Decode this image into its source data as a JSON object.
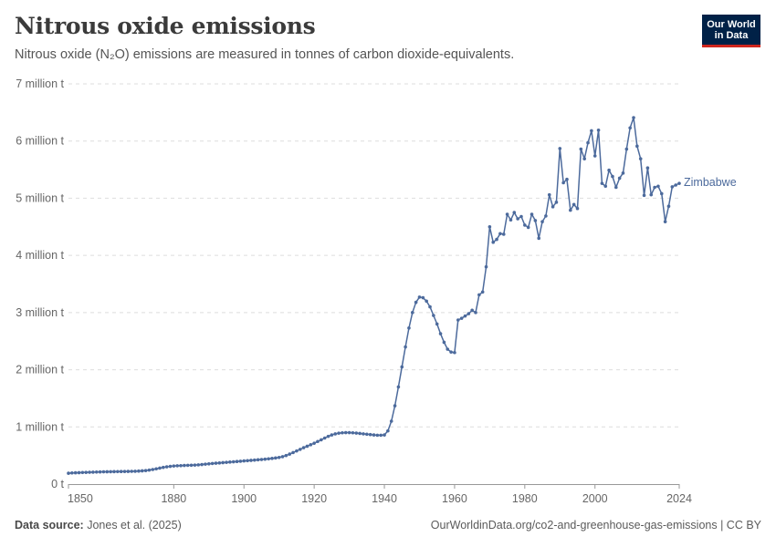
{
  "header": {
    "title": "Nitrous oxide emissions",
    "subtitle": "Nitrous oxide (N₂O) emissions are measured in tonnes of carbon dioxide-equivalents."
  },
  "logo": {
    "line1": "Our World",
    "line2": "in Data"
  },
  "footer": {
    "source_label": "Data source:",
    "source_text": "Jones et al. (2025)",
    "right_text": "OurWorldinData.org/co2-and-greenhouse-gas-emissions | CC BY"
  },
  "colors": {
    "series": "#4c6a9c",
    "grid": "#dddddd",
    "axis": "#999999"
  },
  "chart_data": {
    "type": "line",
    "title": "Nitrous oxide emissions",
    "subtitle": "Nitrous oxide (N₂O) emissions are measured in tonnes of carbon dioxide-equivalents.",
    "xlim": [
      1850,
      2024
    ],
    "ylim": [
      0,
      7000000
    ],
    "grid": "horizontal dashed",
    "x_ticks": [
      1850,
      1880,
      1900,
      1920,
      1940,
      1960,
      1980,
      2000,
      2024
    ],
    "x_tick_labels": [
      "1850",
      "1880",
      "1900",
      "1920",
      "1940",
      "1960",
      "1980",
      "2000",
      "2024"
    ],
    "y_ticks": [
      0,
      1000000,
      2000000,
      3000000,
      4000000,
      5000000,
      6000000,
      7000000
    ],
    "y_tick_labels": [
      "0 t",
      "1 million t",
      "2 million t",
      "3 million t",
      "4 million t",
      "5 million t",
      "6 million t",
      "7 million t"
    ],
    "series": [
      {
        "name": "Zimbabwe",
        "points": [
          [
            1850,
            190000
          ],
          [
            1851,
            195000
          ],
          [
            1852,
            198000
          ],
          [
            1853,
            200000
          ],
          [
            1854,
            203000
          ],
          [
            1855,
            205000
          ],
          [
            1856,
            207000
          ],
          [
            1857,
            209000
          ],
          [
            1858,
            211000
          ],
          [
            1859,
            213000
          ],
          [
            1860,
            215000
          ],
          [
            1861,
            216000
          ],
          [
            1862,
            217000
          ],
          [
            1863,
            218000
          ],
          [
            1864,
            219000
          ],
          [
            1865,
            220000
          ],
          [
            1866,
            221000
          ],
          [
            1867,
            222000
          ],
          [
            1868,
            223000
          ],
          [
            1869,
            225000
          ],
          [
            1870,
            228000
          ],
          [
            1871,
            232000
          ],
          [
            1872,
            237000
          ],
          [
            1873,
            245000
          ],
          [
            1874,
            255000
          ],
          [
            1875,
            267000
          ],
          [
            1876,
            280000
          ],
          [
            1877,
            292000
          ],
          [
            1878,
            302000
          ],
          [
            1879,
            310000
          ],
          [
            1880,
            316000
          ],
          [
            1881,
            320000
          ],
          [
            1882,
            323000
          ],
          [
            1883,
            326000
          ],
          [
            1884,
            328000
          ],
          [
            1885,
            330000
          ],
          [
            1886,
            333000
          ],
          [
            1887,
            337000
          ],
          [
            1888,
            342000
          ],
          [
            1889,
            348000
          ],
          [
            1890,
            354000
          ],
          [
            1891,
            360000
          ],
          [
            1892,
            365000
          ],
          [
            1893,
            370000
          ],
          [
            1894,
            375000
          ],
          [
            1895,
            380000
          ],
          [
            1896,
            385000
          ],
          [
            1897,
            390000
          ],
          [
            1898,
            395000
          ],
          [
            1899,
            400000
          ],
          [
            1900,
            405000
          ],
          [
            1901,
            410000
          ],
          [
            1902,
            415000
          ],
          [
            1903,
            420000
          ],
          [
            1904,
            425000
          ],
          [
            1905,
            430000
          ],
          [
            1906,
            436000
          ],
          [
            1907,
            442000
          ],
          [
            1908,
            449000
          ],
          [
            1909,
            457000
          ],
          [
            1910,
            466000
          ],
          [
            1911,
            480000
          ],
          [
            1912,
            500000
          ],
          [
            1913,
            525000
          ],
          [
            1914,
            552000
          ],
          [
            1915,
            580000
          ],
          [
            1916,
            608000
          ],
          [
            1917,
            636000
          ],
          [
            1918,
            662000
          ],
          [
            1919,
            688000
          ],
          [
            1920,
            715000
          ],
          [
            1921,
            745000
          ],
          [
            1922,
            775000
          ],
          [
            1923,
            805000
          ],
          [
            1924,
            835000
          ],
          [
            1925,
            860000
          ],
          [
            1926,
            878000
          ],
          [
            1927,
            890000
          ],
          [
            1928,
            897000
          ],
          [
            1929,
            900000
          ],
          [
            1930,
            900000
          ],
          [
            1931,
            897000
          ],
          [
            1932,
            892000
          ],
          [
            1933,
            886000
          ],
          [
            1934,
            879000
          ],
          [
            1935,
            872000
          ],
          [
            1936,
            866000
          ],
          [
            1937,
            860000
          ],
          [
            1938,
            855000
          ],
          [
            1939,
            855000
          ],
          [
            1940,
            860000
          ],
          [
            1941,
            930000
          ],
          [
            1942,
            1100000
          ],
          [
            1943,
            1370000
          ],
          [
            1944,
            1700000
          ],
          [
            1945,
            2050000
          ],
          [
            1946,
            2400000
          ],
          [
            1947,
            2730000
          ],
          [
            1948,
            3000000
          ],
          [
            1949,
            3180000
          ],
          [
            1950,
            3270000
          ],
          [
            1951,
            3260000
          ],
          [
            1952,
            3200000
          ],
          [
            1953,
            3100000
          ],
          [
            1954,
            2950000
          ],
          [
            1955,
            2800000
          ],
          [
            1956,
            2630000
          ],
          [
            1957,
            2480000
          ],
          [
            1958,
            2360000
          ],
          [
            1959,
            2310000
          ],
          [
            1960,
            2300000
          ],
          [
            1961,
            2870000
          ],
          [
            1962,
            2900000
          ],
          [
            1963,
            2940000
          ],
          [
            1964,
            2980000
          ],
          [
            1965,
            3040000
          ],
          [
            1966,
            3000000
          ],
          [
            1967,
            3310000
          ],
          [
            1968,
            3360000
          ],
          [
            1969,
            3800000
          ],
          [
            1970,
            4500000
          ],
          [
            1971,
            4230000
          ],
          [
            1972,
            4280000
          ],
          [
            1973,
            4380000
          ],
          [
            1974,
            4370000
          ],
          [
            1975,
            4720000
          ],
          [
            1976,
            4620000
          ],
          [
            1977,
            4750000
          ],
          [
            1978,
            4640000
          ],
          [
            1979,
            4680000
          ],
          [
            1980,
            4530000
          ],
          [
            1981,
            4490000
          ],
          [
            1982,
            4720000
          ],
          [
            1983,
            4610000
          ],
          [
            1984,
            4300000
          ],
          [
            1985,
            4590000
          ],
          [
            1986,
            4690000
          ],
          [
            1987,
            5060000
          ],
          [
            1988,
            4850000
          ],
          [
            1989,
            4930000
          ],
          [
            1990,
            5870000
          ],
          [
            1991,
            5270000
          ],
          [
            1992,
            5330000
          ],
          [
            1993,
            4790000
          ],
          [
            1994,
            4890000
          ],
          [
            1995,
            4820000
          ],
          [
            1996,
            5860000
          ],
          [
            1997,
            5690000
          ],
          [
            1998,
            5970000
          ],
          [
            1999,
            6180000
          ],
          [
            2000,
            5740000
          ],
          [
            2001,
            6190000
          ],
          [
            2002,
            5260000
          ],
          [
            2003,
            5210000
          ],
          [
            2004,
            5490000
          ],
          [
            2005,
            5380000
          ],
          [
            2006,
            5190000
          ],
          [
            2007,
            5350000
          ],
          [
            2008,
            5440000
          ],
          [
            2009,
            5860000
          ],
          [
            2010,
            6230000
          ],
          [
            2011,
            6410000
          ],
          [
            2012,
            5910000
          ],
          [
            2013,
            5690000
          ],
          [
            2014,
            5050000
          ],
          [
            2015,
            5530000
          ],
          [
            2016,
            5060000
          ],
          [
            2017,
            5190000
          ],
          [
            2018,
            5210000
          ],
          [
            2019,
            5080000
          ],
          [
            2020,
            4590000
          ],
          [
            2021,
            4860000
          ],
          [
            2022,
            5200000
          ],
          [
            2023,
            5230000
          ],
          [
            2024,
            5260000
          ]
        ]
      }
    ]
  }
}
